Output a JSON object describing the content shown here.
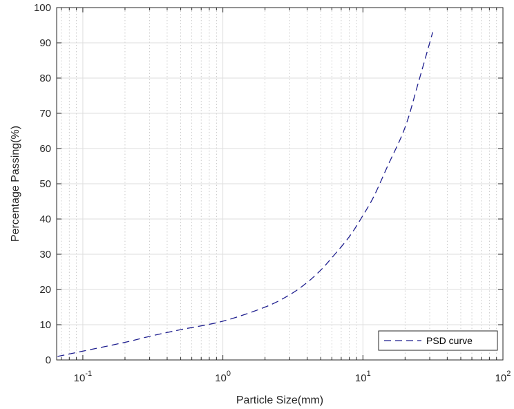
{
  "chart_data": {
    "type": "line",
    "xscale": "log",
    "xlim": [
      0.065,
      100
    ],
    "ylim": [
      0,
      100
    ],
    "xlabel": "Particle Size(mm)",
    "ylabel": "Percentage Passing(%)",
    "x_ticks": [
      {
        "value": 0.1,
        "base": "10",
        "exp": "-1"
      },
      {
        "value": 1,
        "base": "10",
        "exp": "0"
      },
      {
        "value": 10,
        "base": "10",
        "exp": "1"
      },
      {
        "value": 100,
        "base": "10",
        "exp": "2"
      }
    ],
    "y_ticks": [
      0,
      10,
      20,
      30,
      40,
      50,
      60,
      70,
      80,
      90,
      100
    ],
    "grid": true,
    "legend_position": "bottom-right",
    "series": [
      {
        "name": "PSD curve",
        "color": "#1f1f8f",
        "line_style": "dashed",
        "points": [
          [
            0.066,
            1
          ],
          [
            0.1,
            2.5
          ],
          [
            0.2,
            5
          ],
          [
            0.3,
            6.7
          ],
          [
            0.5,
            8.6
          ],
          [
            1,
            11
          ],
          [
            2,
            15
          ],
          [
            3,
            18.5
          ],
          [
            4,
            22
          ],
          [
            5,
            25.5
          ],
          [
            6,
            29
          ],
          [
            8,
            35
          ],
          [
            10,
            41
          ],
          [
            12,
            46.5
          ],
          [
            15,
            55
          ],
          [
            20,
            66
          ],
          [
            25,
            79
          ],
          [
            31.5,
            93
          ]
        ]
      }
    ]
  }
}
